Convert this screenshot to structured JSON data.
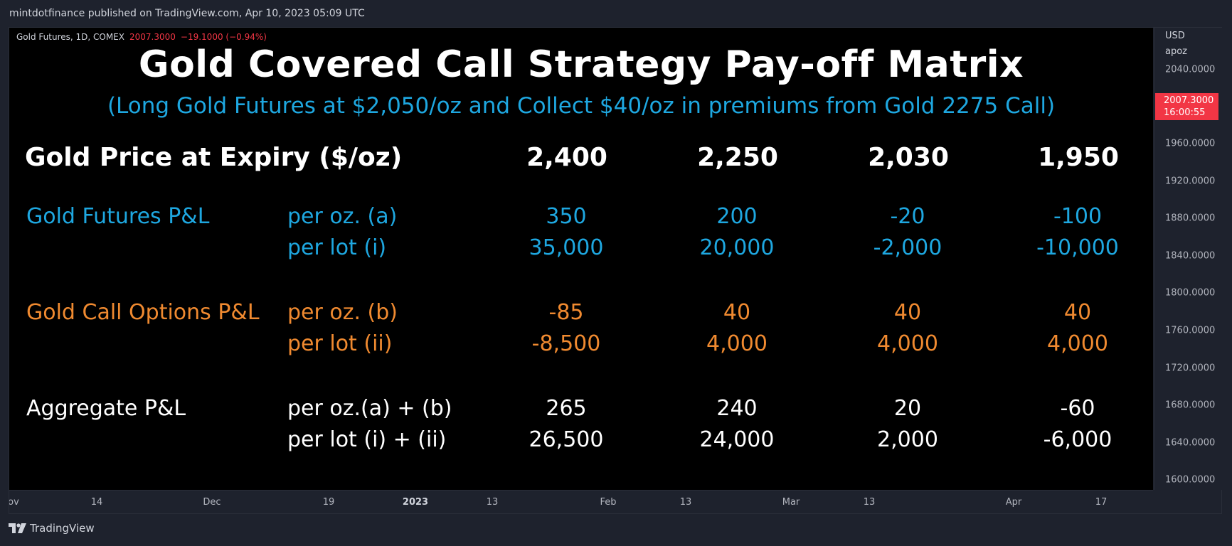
{
  "header": {
    "published": "mintdotfinance published on TradingView.com, Apr 10, 2023 05:09 UTC"
  },
  "legend": {
    "symbol": "Gold Futures, 1D, COMEX",
    "price": "2007.3000",
    "change": "−19.1000 (−0.94%)"
  },
  "price_axis": {
    "currency": "USD",
    "unit": "apoz",
    "ticks": [
      "2040.0000",
      "1960.0000",
      "1920.0000",
      "1880.0000",
      "1840.0000",
      "1800.0000",
      "1760.0000",
      "1720.0000",
      "1680.0000",
      "1640.0000",
      "1600.0000"
    ],
    "current_price": "2007.3000",
    "countdown": "16:00:55"
  },
  "time_axis": {
    "ticks": [
      "ov",
      "14",
      "Dec",
      "19",
      "2023",
      "13",
      "Feb",
      "13",
      "Mar",
      "13",
      "Apr",
      "17"
    ]
  },
  "matrix": {
    "title": "Gold Covered Call Strategy Pay-off Matrix",
    "subtitle": "(Long Gold Futures at $2,050/oz and Collect $40/oz in premiums from Gold 2275 Call)",
    "price_label": "Gold Price at Expiry ($/oz)",
    "prices": [
      "2,400",
      "2,250",
      "2,030",
      "1,950"
    ],
    "futures": {
      "label": "Gold Futures P&L",
      "oz_label": "per oz. (a)",
      "lot_label": "per lot (i)",
      "oz": [
        "350",
        "200",
        "-20",
        "-100"
      ],
      "lot": [
        "35,000",
        "20,000",
        "-2,000",
        "-10,000"
      ]
    },
    "options": {
      "label": "Gold Call Options P&L",
      "oz_label": "per oz. (b)",
      "lot_label": "per lot (ii)",
      "oz": [
        "-85",
        "40",
        "40",
        "40"
      ],
      "lot": [
        "-8,500",
        "4,000",
        "4,000",
        "4,000"
      ]
    },
    "aggregate": {
      "label": "Aggregate P&L",
      "oz_label": "per oz.(a) + (b)",
      "lot_label": "per lot (i) + (ii)",
      "oz": [
        "265",
        "240",
        "20",
        "-60"
      ],
      "lot": [
        "26,500",
        "24,000",
        "2,000",
        "-6,000"
      ]
    }
  },
  "footer": {
    "brand": "TradingView"
  },
  "colors": {
    "accent_blue": "#1ea7e0",
    "accent_orange": "#f08a30",
    "down_red": "#f23645"
  }
}
